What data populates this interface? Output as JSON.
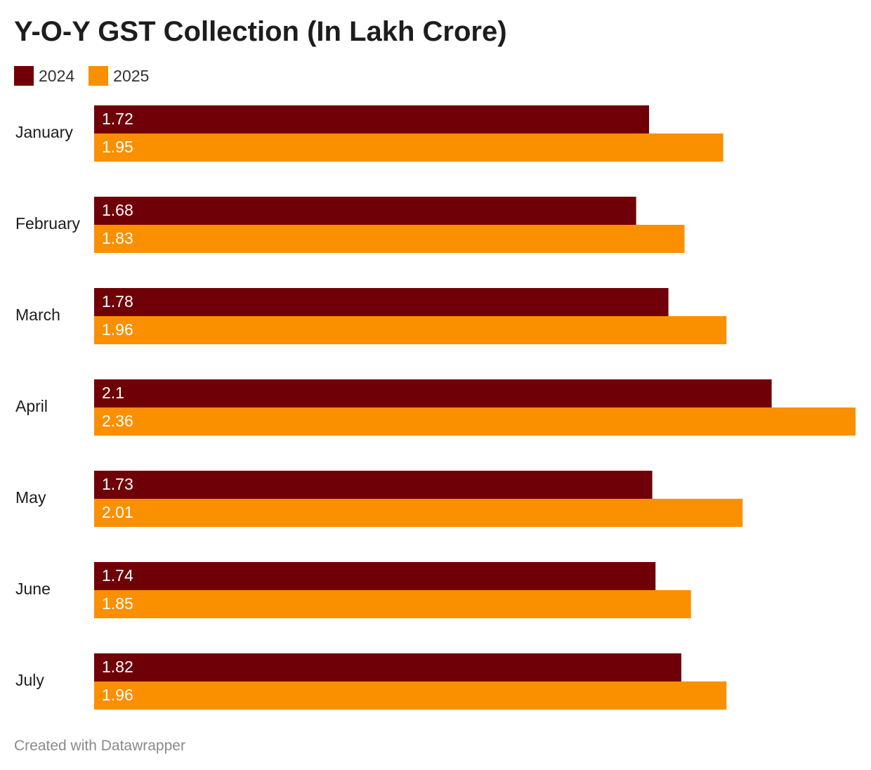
{
  "chart_data": {
    "type": "bar",
    "orientation": "horizontal",
    "title": "Y-O-Y GST Collection (In Lakh Crore)",
    "categories": [
      "January",
      "February",
      "March",
      "April",
      "May",
      "June",
      "July"
    ],
    "series": [
      {
        "name": "2024",
        "color": "#700008",
        "values": [
          1.72,
          1.68,
          1.78,
          2.1,
          1.73,
          1.74,
          1.82
        ],
        "labels": [
          "1.72",
          "1.68",
          "1.78",
          "2.1",
          "1.73",
          "1.74",
          "1.82"
        ]
      },
      {
        "name": "2025",
        "color": "#fa8f00",
        "values": [
          1.95,
          1.83,
          1.96,
          2.36,
          2.01,
          1.85,
          1.96
        ],
        "labels": [
          "1.95",
          "1.83",
          "1.96",
          "2.36",
          "2.01",
          "1.85",
          "1.96"
        ]
      }
    ],
    "xlim": [
      0,
      2.36
    ],
    "grid": false,
    "legend_position": "top-left",
    "xlabel": "",
    "ylabel": ""
  },
  "footer": {
    "credit": "Created with Datawrapper"
  }
}
